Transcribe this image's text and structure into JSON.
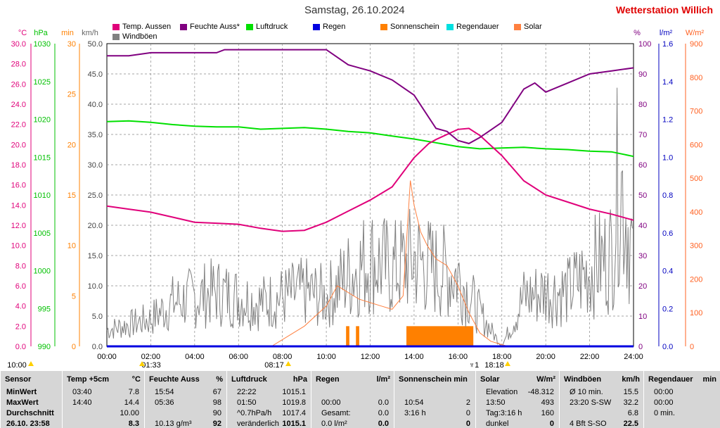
{
  "header": {
    "title": "Samstag, 26.10.2024",
    "station": "Wetterstation Willich"
  },
  "legend": [
    {
      "label": "Temp. Aussen",
      "color": "#e0007a"
    },
    {
      "label": "Feuchte Auss*",
      "color": "#800080"
    },
    {
      "label": "Luftdruck",
      "color": "#00e000"
    },
    {
      "label": "Regen",
      "color": "#0000e0"
    },
    {
      "label": "Sonnenschein",
      "color": "#ff8000"
    },
    {
      "label": "Regendauer",
      "color": "#00e0e0"
    },
    {
      "label": "Solar",
      "color": "#ff8040"
    },
    {
      "label": "Windböen",
      "color": "#808080"
    }
  ],
  "axes": {
    "units": {
      "temp": "°C",
      "pressure": "hPa",
      "sun": "min",
      "wind": "km/h",
      "humidity": "%",
      "rain": "l/m²",
      "solar": "W/m²"
    },
    "temp_ticks": [
      "30.0",
      "28.0",
      "26.0",
      "24.0",
      "22.0",
      "20.0",
      "18.0",
      "16.0",
      "14.0",
      "12.0",
      "10.0",
      "8.0",
      "6.0",
      "4.0",
      "2.0",
      "0.0"
    ],
    "pressure_ticks": [
      "1030",
      "1025",
      "1020",
      "1015",
      "1010",
      "1005",
      "1000",
      "995",
      "990"
    ],
    "sun_ticks": [
      "30",
      "25",
      "20",
      "15",
      "10",
      "5",
      "0"
    ],
    "wind_ticks": [
      "50.0",
      "45.0",
      "40.0",
      "35.0",
      "30.0",
      "25.0",
      "20.0",
      "15.0",
      "10.0",
      "5.0",
      "0.0"
    ],
    "humidity_ticks": [
      "100",
      "90",
      "80",
      "70",
      "60",
      "50",
      "40",
      "30",
      "20",
      "10",
      "0"
    ],
    "rain_ticks": [
      "1.6",
      "1.4",
      "1.2",
      "1.0",
      "0.8",
      "0.6",
      "0.4",
      "0.2",
      "0.0"
    ],
    "solar_ticks": [
      "900",
      "800",
      "700",
      "600",
      "500",
      "400",
      "300",
      "200",
      "100",
      "0"
    ],
    "x_ticks": [
      "00:00",
      "02:00",
      "04:00",
      "06:00",
      "08:00",
      "10:00",
      "12:00",
      "14:00",
      "16:00",
      "18:00",
      "20:00",
      "22:00",
      "24:00"
    ]
  },
  "markers": {
    "left_label": "10:00",
    "sunrise": "01:33",
    "time1": "08:17",
    "sunset": "18:18",
    "moon_label": "♆1"
  },
  "chart_data": {
    "type": "line",
    "x_unit": "hours",
    "xlim": [
      0,
      24
    ],
    "series": [
      {
        "name": "Temp. Aussen",
        "unit": "°C",
        "ylim": [
          0,
          30
        ],
        "x": [
          0,
          1,
          2,
          3,
          4,
          5,
          6,
          7,
          8,
          9,
          10,
          11,
          12,
          13,
          14,
          14.67,
          15,
          16,
          16.5,
          17,
          18,
          19,
          20,
          21,
          22,
          23,
          24
        ],
        "values": [
          13.9,
          13.6,
          13.3,
          12.8,
          12.3,
          12.2,
          12.1,
          11.7,
          11.4,
          11.5,
          12.3,
          13.4,
          14.5,
          15.8,
          18.7,
          20.1,
          20.5,
          21.5,
          21.6,
          20.9,
          18.9,
          16.4,
          15.0,
          14.3,
          13.6,
          13.1,
          12.5
        ]
      },
      {
        "name": "Feuchte Auss*",
        "unit": "%",
        "ylim": [
          0,
          100
        ],
        "x": [
          0,
          1,
          2,
          3,
          4,
          5,
          5.36,
          6,
          7,
          8,
          9,
          10,
          11,
          12,
          13,
          14,
          15,
          15.5,
          16,
          16.5,
          17,
          18,
          19,
          19.5,
          20,
          21,
          22,
          23,
          24
        ],
        "values": [
          96,
          96,
          97,
          97,
          97,
          97,
          98,
          98,
          98,
          98,
          98,
          98,
          93,
          91,
          88,
          83,
          72,
          71,
          68,
          67,
          69,
          74,
          85,
          87,
          84,
          87,
          90,
          91,
          92
        ]
      },
      {
        "name": "Luftdruck",
        "unit": "hPa",
        "ylim": [
          990,
          1030
        ],
        "x": [
          0,
          1,
          2,
          3,
          4,
          5,
          6,
          7,
          8,
          9,
          10,
          11,
          12,
          13,
          14,
          15,
          16,
          17,
          18,
          19,
          20,
          21,
          22,
          23,
          24
        ],
        "values": [
          1019.7,
          1019.8,
          1019.6,
          1019.3,
          1019.1,
          1019.0,
          1019.0,
          1018.7,
          1018.8,
          1018.9,
          1018.7,
          1018.4,
          1018.2,
          1017.8,
          1017.4,
          1016.9,
          1016.4,
          1016.1,
          1016.2,
          1016.3,
          1016.1,
          1016.0,
          1015.8,
          1015.7,
          1015.1
        ]
      },
      {
        "name": "Regen",
        "unit": "l/m²",
        "ylim": [
          0,
          1.6
        ],
        "x": [
          0,
          24
        ],
        "values": [
          0.0,
          0.0
        ]
      },
      {
        "name": "Solar",
        "unit": "W/m²",
        "ylim": [
          0,
          900
        ],
        "x": [
          7.5,
          8,
          9,
          10,
          10.5,
          11,
          11.5,
          12,
          12.5,
          13,
          13.5,
          13.83,
          14,
          14.3,
          14.6,
          15,
          15.5,
          16,
          16.5,
          17,
          17.5,
          18,
          18.3
        ],
        "values": [
          0,
          20,
          60,
          120,
          180,
          160,
          140,
          130,
          120,
          110,
          150,
          493,
          420,
          340,
          300,
          260,
          240,
          180,
          100,
          40,
          15,
          5,
          0
        ]
      },
      {
        "name": "Windböen",
        "unit": "km/h",
        "ylim": [
          0,
          50
        ],
        "x": [
          0,
          1,
          2,
          3,
          4,
          5,
          6,
          7,
          8,
          9,
          10,
          11,
          12,
          13,
          14,
          15,
          16,
          17,
          18,
          19,
          20,
          21,
          22,
          23,
          23.33,
          24
        ],
        "values": [
          3,
          4,
          5,
          8,
          9,
          10,
          9,
          8,
          9,
          10,
          9,
          13,
          16,
          14,
          16,
          14,
          13,
          6,
          0,
          9,
          10,
          10,
          14,
          17,
          32.2,
          16
        ]
      },
      {
        "name": "Sonnenschein",
        "unit": "min",
        "ylim": [
          0,
          30
        ],
        "bars": [
          {
            "start": 10.9,
            "end": 11.05,
            "value": 2
          },
          {
            "start": 11.35,
            "end": 11.5,
            "value": 2
          },
          {
            "start": 13.65,
            "end": 16.7,
            "value": 2
          }
        ]
      }
    ]
  },
  "table": {
    "columns": [
      {
        "title": "Sensor",
        "unit": "",
        "rows": [
          [
            "MinWert",
            ""
          ],
          [
            "MaxWert",
            ""
          ],
          [
            "Durchschnitt",
            ""
          ],
          [
            "26.10. 23:58",
            ""
          ]
        ]
      },
      {
        "title": "Temp +5cm",
        "unit": "°C",
        "rows": [
          [
            "03:40",
            "7.8"
          ],
          [
            "14:40",
            "14.4"
          ],
          [
            "",
            "10.00"
          ],
          [
            "",
            "8.3"
          ]
        ]
      },
      {
        "title": "Feuchte Auss",
        "unit": "%",
        "rows": [
          [
            "15:54",
            "67"
          ],
          [
            "05:36",
            "98"
          ],
          [
            "",
            "90"
          ],
          [
            "10.13 g/m³",
            "92"
          ]
        ]
      },
      {
        "title": "Luftdruck",
        "unit": "hPa",
        "rows": [
          [
            "22:22",
            "1015.1"
          ],
          [
            "01:50",
            "1019.8"
          ],
          [
            "^0.7hPa/h",
            "1017.4"
          ],
          [
            "veränderlich",
            "1015.1"
          ]
        ]
      },
      {
        "title": "Regen",
        "unit": "l/m²",
        "rows": [
          [
            "",
            ""
          ],
          [
            "00:00",
            "0.0"
          ],
          [
            "Gesamt:",
            "0.0"
          ],
          [
            "0.0 l/m²",
            "0.0"
          ]
        ]
      },
      {
        "title": "Sonnenschein min",
        "unit": "",
        "rows": [
          [
            "",
            ""
          ],
          [
            "10:54",
            "2"
          ],
          [
            "3:16 h",
            "0"
          ],
          [
            "",
            "0"
          ]
        ]
      },
      {
        "title": "Solar",
        "unit": "W/m²",
        "rows": [
          [
            "Elevation",
            "-48.312"
          ],
          [
            "13:50",
            "493"
          ],
          [
            "Tag:3:16 h",
            "160"
          ],
          [
            "dunkel",
            "0"
          ]
        ]
      },
      {
        "title": "Windböen",
        "unit": "km/h",
        "rows": [
          [
            "Ø 10 min.",
            "15.5"
          ],
          [
            "23:20   S-SW",
            "32.2"
          ],
          [
            "",
            "6.8"
          ],
          [
            "4 Bft S-SO",
            "22.5"
          ]
        ]
      },
      {
        "title": "Regendauer",
        "unit": "min",
        "rows": [
          [
            "00:00",
            ""
          ],
          [
            "00:00",
            ""
          ],
          [
            "0 min.",
            ""
          ],
          [
            "",
            ""
          ]
        ]
      }
    ]
  }
}
